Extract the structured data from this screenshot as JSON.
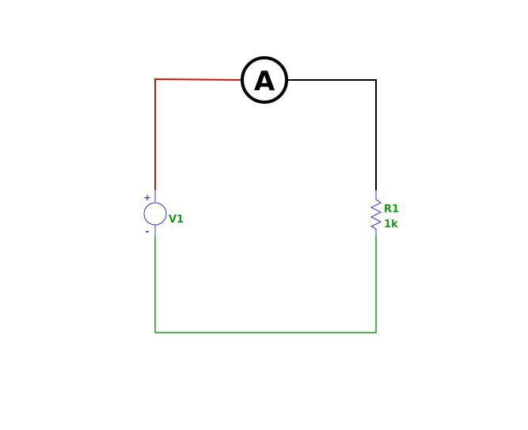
{
  "ammeter": {
    "symbol": "A"
  },
  "source": {
    "name": "V1",
    "plus": "+",
    "minus": "-"
  },
  "resistor": {
    "name": "R1",
    "value": "1k"
  },
  "colors": {
    "wire_red": "#cc1111",
    "wire_black": "#000000",
    "wire_green": "#1a9a1a",
    "component_blue": "#3333dd",
    "label_green": "#1a9a1a",
    "meter_stroke": "#000000"
  }
}
